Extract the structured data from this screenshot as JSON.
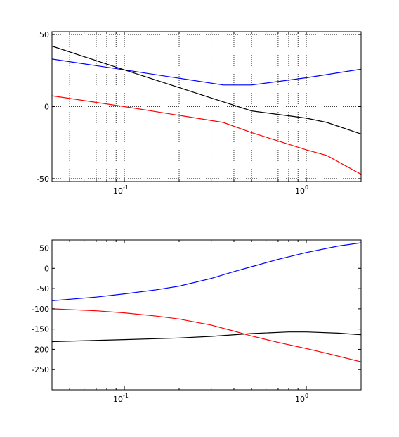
{
  "chart_data": [
    {
      "type": "line",
      "xscale": "log",
      "xlim": [
        0.04,
        2.0
      ],
      "ylim": [
        -52,
        52
      ],
      "grid": true,
      "yticks": [
        {
          "value": -50,
          "label": "-50"
        },
        {
          "value": 0,
          "label": "0"
        },
        {
          "value": 50,
          "label": "50"
        }
      ],
      "xticks": [
        {
          "value": 0.1,
          "base": "10",
          "exp": "-1"
        },
        {
          "value": 1,
          "base": "10",
          "exp": "0"
        }
      ],
      "series": [
        {
          "color": "#0000ff",
          "x": [
            0.04,
            0.1,
            0.35,
            0.5,
            1.0,
            2.0
          ],
          "y": [
            33,
            25.5,
            15,
            15,
            20,
            26
          ]
        },
        {
          "color": "#000000",
          "x": [
            0.04,
            0.1,
            0.3,
            0.5,
            1.0,
            1.3,
            2.0
          ],
          "y": [
            42,
            25.5,
            6,
            -3,
            -8,
            -11,
            -19
          ]
        },
        {
          "color": "#ff0000",
          "x": [
            0.04,
            0.1,
            0.35,
            0.5,
            1.0,
            1.3,
            2.0
          ],
          "y": [
            7.5,
            0,
            -11,
            -18,
            -30,
            -34,
            -47
          ]
        }
      ]
    },
    {
      "type": "line",
      "xscale": "log",
      "xlim": [
        0.04,
        2.0
      ],
      "ylim": [
        -300,
        70
      ],
      "grid": false,
      "yticks": [
        {
          "value": -250,
          "label": "-250"
        },
        {
          "value": -200,
          "label": "-200"
        },
        {
          "value": -150,
          "label": "-150"
        },
        {
          "value": -100,
          "label": "-100"
        },
        {
          "value": -50,
          "label": "-50"
        },
        {
          "value": 0,
          "label": "0"
        },
        {
          "value": 50,
          "label": "50"
        }
      ],
      "xticks": [
        {
          "value": 0.1,
          "base": "10",
          "exp": "-1"
        },
        {
          "value": 1,
          "base": "10",
          "exp": "0"
        }
      ],
      "series": [
        {
          "color": "#0000ff",
          "x": [
            0.04,
            0.07,
            0.1,
            0.15,
            0.2,
            0.3,
            0.4,
            0.5,
            0.7,
            1.0,
            1.5,
            2.0
          ],
          "y": [
            -80,
            -71,
            -63,
            -53,
            -44,
            -25,
            -8,
            4,
            22,
            39,
            55,
            63
          ]
        },
        {
          "color": "#000000",
          "x": [
            0.04,
            0.1,
            0.2,
            0.3,
            0.5,
            0.8,
            1.0,
            1.5,
            2.0
          ],
          "y": [
            -181,
            -176,
            -172,
            -168,
            -161,
            -157,
            -157,
            -160,
            -164
          ]
        },
        {
          "color": "#ff0000",
          "x": [
            0.04,
            0.07,
            0.1,
            0.15,
            0.2,
            0.3,
            0.4,
            0.5,
            0.7,
            1.0,
            1.3,
            2.0
          ],
          "y": [
            -100,
            -105,
            -110,
            -118,
            -125,
            -140,
            -155,
            -167,
            -183,
            -198,
            -210,
            -231
          ]
        }
      ]
    }
  ]
}
